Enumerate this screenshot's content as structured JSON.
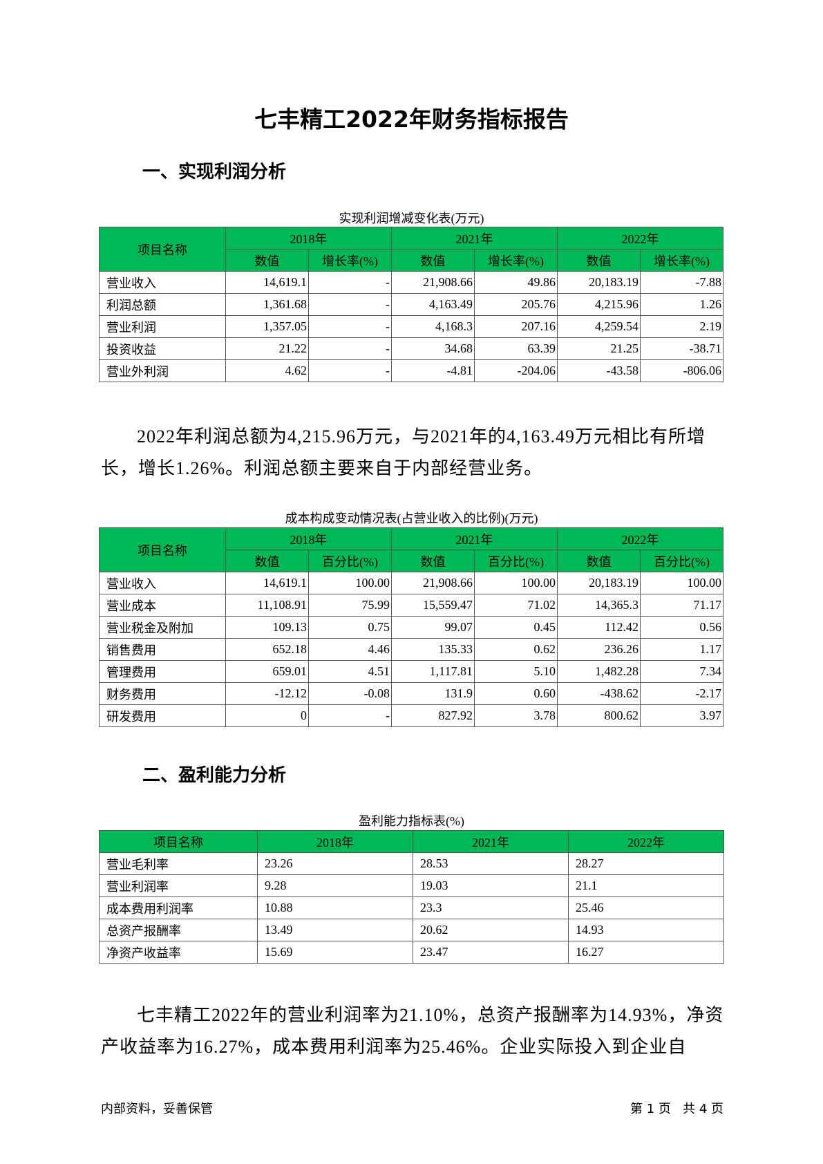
{
  "title": "七丰精工2022年财务指标报告",
  "section1": {
    "heading": "一、实现利润分析"
  },
  "table1": {
    "caption": "实现利润增减变化表(万元)",
    "name_header": "项目名称",
    "years": [
      "2018年",
      "2021年",
      "2022年"
    ],
    "sub_headers": [
      "数值",
      "增长率(%)"
    ],
    "rows": [
      {
        "name": "营业收入",
        "v": [
          "14,619.1",
          "-",
          "21,908.66",
          "49.86",
          "20,183.19",
          "-7.88"
        ]
      },
      {
        "name": "利润总额",
        "v": [
          "1,361.68",
          "-",
          "4,163.49",
          "205.76",
          "4,215.96",
          "1.26"
        ]
      },
      {
        "name": "营业利润",
        "v": [
          "1,357.05",
          "-",
          "4,168.3",
          "207.16",
          "4,259.54",
          "2.19"
        ]
      },
      {
        "name": "投资收益",
        "v": [
          "21.22",
          "-",
          "34.68",
          "63.39",
          "21.25",
          "-38.71"
        ]
      },
      {
        "name": "营业外利润",
        "v": [
          "4.62",
          "-",
          "-4.81",
          "-204.06",
          "-43.58",
          "-806.06"
        ]
      }
    ]
  },
  "paragraph1": "2022年利润总额为4,215.96万元，与2021年的4,163.49万元相比有所增长，增长1.26%。利润总额主要来自于内部经营业务。",
  "table2": {
    "caption": "成本构成变动情况表(占营业收入的比例)(万元)",
    "name_header": "项目名称",
    "years": [
      "2018年",
      "2021年",
      "2022年"
    ],
    "sub_headers": [
      "数值",
      "百分比(%)"
    ],
    "rows": [
      {
        "name": "营业收入",
        "v": [
          "14,619.1",
          "100.00",
          "21,908.66",
          "100.00",
          "20,183.19",
          "100.00"
        ]
      },
      {
        "name": "营业成本",
        "v": [
          "11,108.91",
          "75.99",
          "15,559.47",
          "71.02",
          "14,365.3",
          "71.17"
        ]
      },
      {
        "name": "营业税金及附加",
        "v": [
          "109.13",
          "0.75",
          "99.07",
          "0.45",
          "112.42",
          "0.56"
        ]
      },
      {
        "name": "销售费用",
        "v": [
          "652.18",
          "4.46",
          "135.33",
          "0.62",
          "236.26",
          "1.17"
        ]
      },
      {
        "name": "管理费用",
        "v": [
          "659.01",
          "4.51",
          "1,117.81",
          "5.10",
          "1,482.28",
          "7.34"
        ]
      },
      {
        "name": "财务费用",
        "v": [
          "-12.12",
          "-0.08",
          "131.9",
          "0.60",
          "-438.62",
          "-2.17"
        ]
      },
      {
        "name": "研发费用",
        "v": [
          "0",
          "-",
          "827.92",
          "3.78",
          "800.62",
          "3.97"
        ]
      }
    ]
  },
  "section2": {
    "heading": "二、盈利能力分析"
  },
  "table3": {
    "caption": "盈利能力指标表(%)",
    "headers": [
      "项目名称",
      "2018年",
      "2021年",
      "2022年"
    ],
    "rows": [
      {
        "name": "营业毛利率",
        "v": [
          "23.26",
          "28.53",
          "28.27"
        ]
      },
      {
        "name": "营业利润率",
        "v": [
          "9.28",
          "19.03",
          "21.1"
        ]
      },
      {
        "name": "成本费用利润率",
        "v": [
          "10.88",
          "23.3",
          "25.46"
        ]
      },
      {
        "name": "总资产报酬率",
        "v": [
          "13.49",
          "20.62",
          "14.93"
        ]
      },
      {
        "name": "净资产收益率",
        "v": [
          "15.69",
          "23.47",
          "16.27"
        ]
      }
    ]
  },
  "paragraph2": "七丰精工2022年的营业利润率为21.10%，总资产报酬率为14.93%，净资产收益率为16.27%，成本费用利润率为25.46%。企业实际投入到企业自",
  "footer": {
    "left": "内部资料，妥善保管",
    "right": "第 1 页   共 4 页"
  },
  "colors": {
    "header_green": "#00b956"
  }
}
